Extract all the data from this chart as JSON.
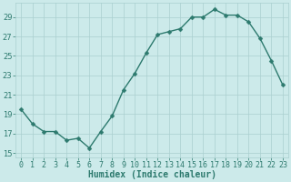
{
  "x": [
    0,
    1,
    2,
    3,
    4,
    5,
    6,
    7,
    8,
    9,
    10,
    11,
    12,
    13,
    14,
    15,
    16,
    17,
    18,
    19,
    20,
    21,
    22,
    23
  ],
  "y": [
    19.5,
    18.0,
    17.2,
    17.2,
    16.3,
    16.5,
    15.5,
    17.2,
    18.8,
    21.5,
    23.2,
    25.3,
    27.2,
    27.5,
    27.8,
    29.0,
    29.0,
    29.8,
    29.2,
    29.2,
    28.5,
    26.8,
    24.5,
    22.0
  ],
  "line_color": "#2d7a6e",
  "marker": "D",
  "markersize": 2.5,
  "linewidth": 1.0,
  "bg_color": "#cceaea",
  "grid_color": "#aacfcf",
  "xlabel": "Humidex (Indice chaleur)",
  "xlabel_color": "#2d7a6e",
  "xlabel_fontsize": 7,
  "tick_label_color": "#2d7a6e",
  "tick_fontsize": 6,
  "ylim": [
    14.5,
    30.5
  ],
  "xlim": [
    -0.5,
    23.5
  ],
  "yticks": [
    15,
    17,
    19,
    21,
    23,
    25,
    27,
    29
  ],
  "xticks": [
    0,
    1,
    2,
    3,
    4,
    5,
    6,
    7,
    8,
    9,
    10,
    11,
    12,
    13,
    14,
    15,
    16,
    17,
    18,
    19,
    20,
    21,
    22,
    23
  ],
  "show_title": false
}
